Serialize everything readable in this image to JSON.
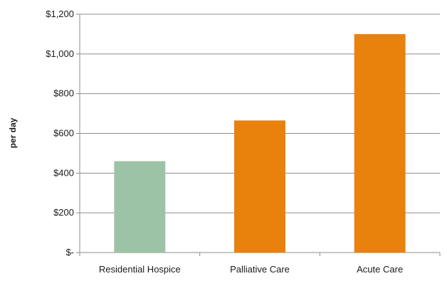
{
  "chart_data": {
    "type": "bar",
    "title": "",
    "xlabel": "",
    "ylabel": "per day",
    "categories": [
      "Residential Hospice",
      "Palliative Care",
      "Acute Care"
    ],
    "values": [
      460,
      665,
      1100
    ],
    "bar_colors": [
      "#9cc3a5",
      "#e8820c",
      "#e8820c"
    ],
    "ylim": [
      0,
      1200
    ],
    "y_ticks": [
      0,
      200,
      400,
      600,
      800,
      1000,
      1200
    ],
    "y_tick_labels": [
      "$-",
      "$200",
      "$400",
      "$600",
      "$800",
      "$1,000",
      "$1,200"
    ],
    "grid": true,
    "legend": "none"
  }
}
